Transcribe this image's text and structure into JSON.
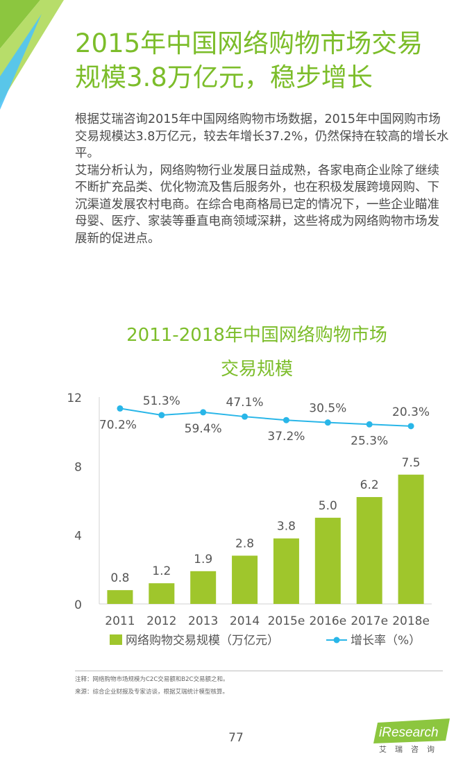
{
  "title": {
    "line1": "2015年中国网络购物市场交易",
    "line2": "规模3.8万亿元，稳步增长"
  },
  "body": {
    "p1": "根据艾瑞咨询2015年中国网络购物市场数据，2015年中国网购市场交易规模达3.8万亿元，较去年增长37.2%，仍然保持在较高的增长水平。",
    "p2": "艾瑞分析认为，网络购物行业发展日益成熟，各家电商企业除了继续不断扩充品类、优化物流及售后服务外，也在积极发展跨境网购、下沉渠道发展农村电商。在综合电商格局已定的情况下，一些企业瞄准母婴、医疗、家装等垂直电商领域深耕，这些将成为网络购物市场发展新的促进点。"
  },
  "chart_title": {
    "line1": "2011-2018年中国网络购物市场",
    "line2": "交易规模"
  },
  "colors": {
    "bar": "#9fc62c",
    "line": "#29b6e8",
    "title": "#7cbd2a"
  },
  "chart_data": {
    "type": "bar",
    "categories": [
      "2011",
      "2012",
      "2013",
      "2014",
      "2015e",
      "2016e",
      "2017e",
      "2018e"
    ],
    "ylim": [
      0,
      12
    ],
    "yticks": [
      "0",
      "4",
      "8",
      "12"
    ],
    "grid": false,
    "legend_position": "bottom",
    "series": [
      {
        "name": "网络购物交易规模（万亿元）",
        "type": "bar",
        "values": [
          0.8,
          1.2,
          1.9,
          2.8,
          3.8,
          5.0,
          6.2,
          7.5
        ],
        "labels": [
          "0.8",
          "1.2",
          "1.9",
          "2.8",
          "3.8",
          "5.0",
          "6.2",
          "7.5"
        ]
      },
      {
        "name": "增长率（%）",
        "type": "line",
        "values": [
          70.2,
          51.3,
          59.4,
          47.1,
          37.2,
          30.5,
          25.3,
          20.3
        ],
        "labels": [
          "70.2%",
          "51.3%",
          "59.4%",
          "47.1%",
          "37.2%",
          "30.5%",
          "25.3%",
          "20.3%"
        ]
      }
    ]
  },
  "notes": {
    "note": "注释：网络购物市场规模为C2C交易额和B2C交易额之和。",
    "source": "来源：综合企业财报及专家访谈，根据艾瑞统计模型核算。"
  },
  "page_number": "77",
  "logo": {
    "brand": "iResearch",
    "sub": "艾瑞咨询"
  }
}
